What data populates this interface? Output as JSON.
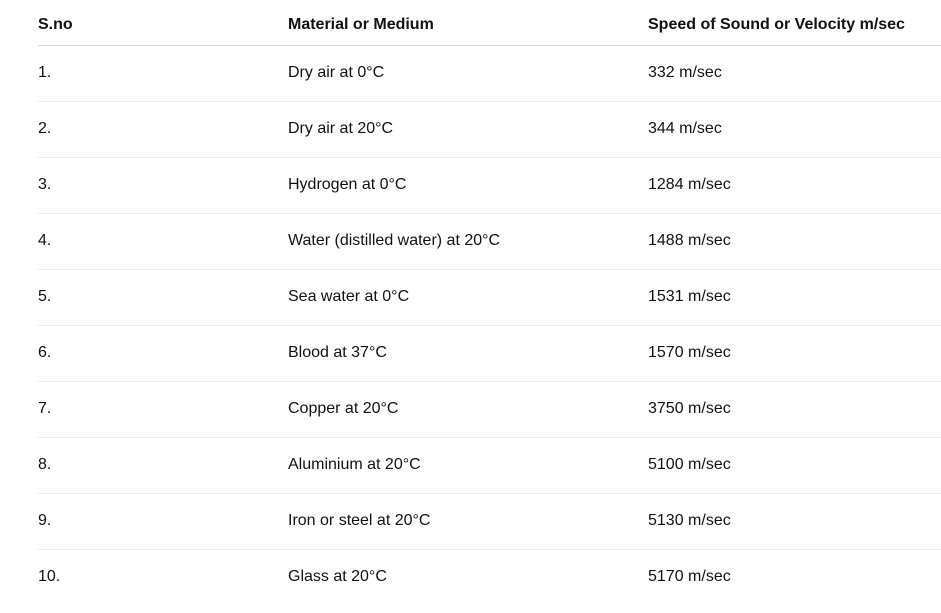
{
  "table": {
    "headers": [
      "S.no",
      "Material or Medium",
      "Speed of Sound or Velocity m/sec"
    ],
    "rows": [
      [
        "1.",
        "Dry air at 0°C",
        "332 m/sec"
      ],
      [
        "2.",
        "Dry air at 20°C",
        "344 m/sec"
      ],
      [
        "3.",
        "Hydrogen at 0°C",
        "1284 m/sec"
      ],
      [
        "4.",
        "Water (distilled water) at 20°C",
        "1488 m/sec"
      ],
      [
        "5.",
        "Sea water at 0°C",
        "1531 m/sec"
      ],
      [
        "6.",
        "Blood at 37°C",
        "1570 m/sec"
      ],
      [
        "7.",
        "Copper at 20°C",
        "3750 m/sec"
      ],
      [
        "8.",
        "Aluminium at 20°C",
        "5100 m/sec"
      ],
      [
        "9.",
        "Iron or steel at 20°C",
        "5130 m/sec"
      ],
      [
        "10.",
        "Glass at 20°C",
        "5170 m/sec"
      ]
    ]
  }
}
